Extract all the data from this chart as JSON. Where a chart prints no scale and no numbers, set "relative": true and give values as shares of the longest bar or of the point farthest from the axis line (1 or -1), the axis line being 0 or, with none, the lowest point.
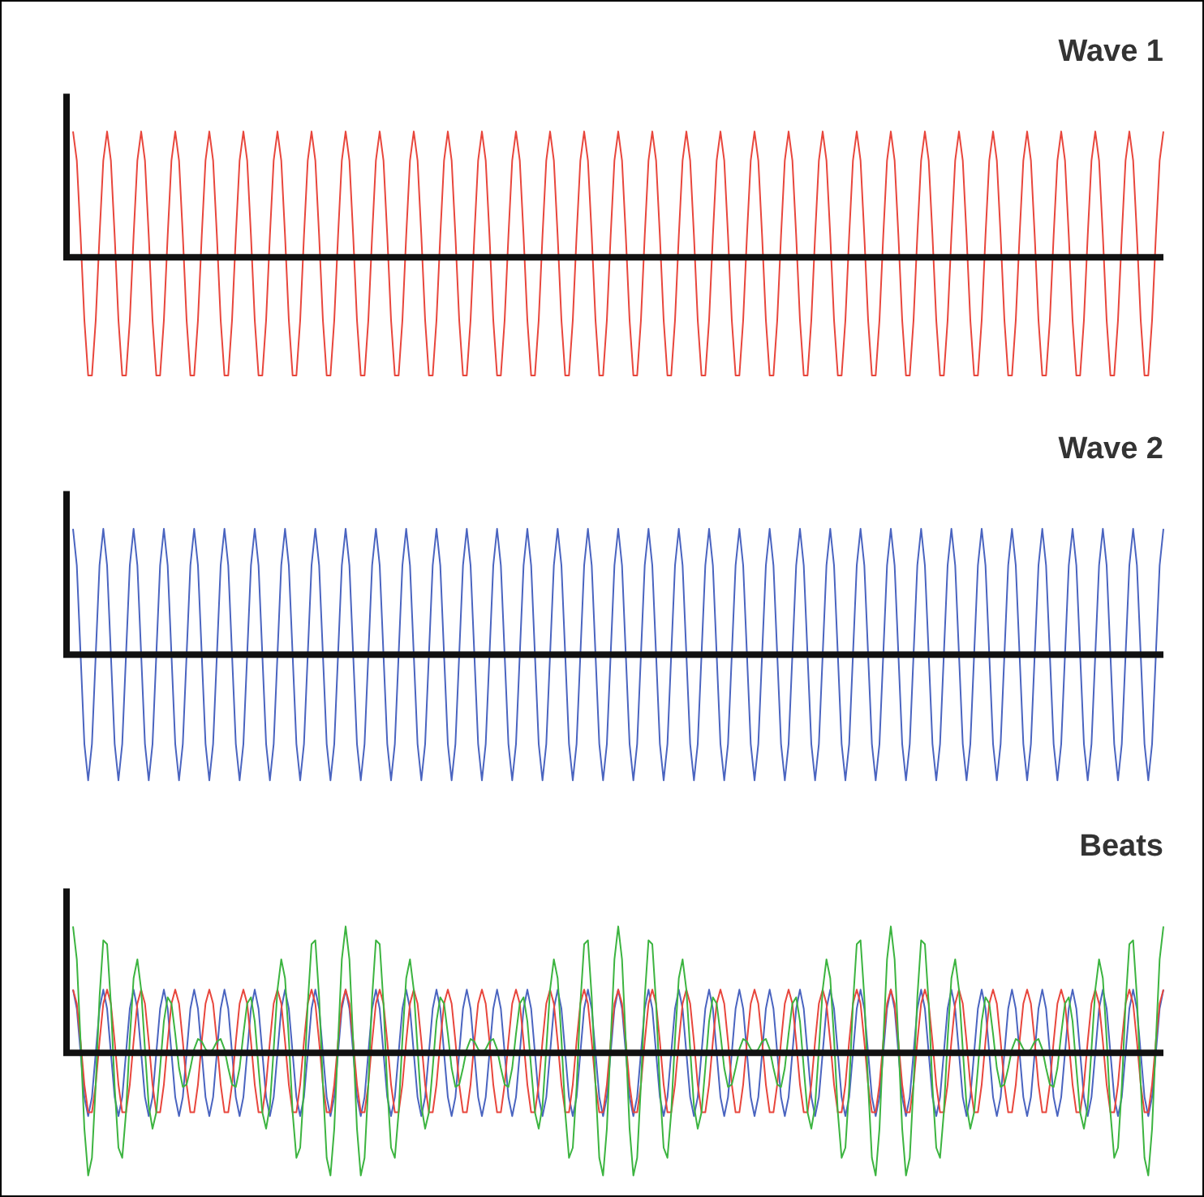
{
  "chart_data": [
    {
      "type": "line",
      "title": "Wave 1",
      "relative": true,
      "marker": "none",
      "categories": [
        null,
        null,
        null,
        null,
        null,
        null,
        null,
        null,
        null,
        null,
        null,
        null,
        null,
        null,
        null,
        null,
        null,
        null,
        null,
        null,
        null,
        null,
        null,
        null,
        null,
        null,
        null,
        null,
        null,
        null,
        null,
        null,
        null,
        null,
        null,
        null,
        null,
        null,
        null,
        null,
        null,
        null,
        null,
        null,
        null,
        null,
        null,
        null,
        null,
        null,
        null,
        null,
        null,
        null,
        null,
        null,
        null,
        null,
        null,
        null,
        null,
        null,
        null,
        null,
        null,
        null,
        null,
        null,
        null,
        null,
        null,
        null,
        null,
        null,
        null,
        null,
        null,
        null,
        null,
        null,
        null,
        null,
        null,
        null,
        null,
        null,
        null,
        null,
        null,
        null,
        null,
        null,
        null,
        null,
        null,
        null,
        null,
        null,
        null,
        null,
        null,
        null,
        null,
        null,
        null,
        null,
        null,
        null,
        null,
        null,
        null,
        null,
        null,
        null,
        null,
        null,
        null,
        null,
        null,
        null,
        null,
        null,
        null,
        null,
        null,
        null,
        null,
        null,
        null,
        null,
        null,
        null,
        null,
        null,
        null,
        null,
        null,
        null,
        null,
        null,
        null,
        null,
        null,
        null,
        null,
        null,
        null,
        null,
        null,
        null,
        null,
        null,
        null,
        null,
        null,
        null,
        null,
        null,
        null,
        null,
        null,
        null,
        null,
        null,
        null,
        null,
        null,
        null,
        null,
        null,
        null,
        null,
        null,
        null,
        null,
        null,
        null,
        null,
        null,
        null,
        null,
        null,
        null,
        null,
        null,
        null,
        null,
        null,
        null,
        null,
        null,
        null,
        null,
        null,
        null,
        null,
        null,
        null,
        null,
        null,
        null,
        null,
        null,
        null,
        null,
        null,
        null,
        null,
        null,
        null,
        null,
        null,
        null,
        null,
        null,
        null,
        null,
        null,
        null,
        null,
        null,
        null,
        null,
        null,
        null,
        null,
        null,
        null,
        null,
        null,
        null,
        null,
        null,
        null,
        null,
        null,
        null,
        null,
        null,
        null,
        null,
        null,
        null,
        null,
        null,
        null,
        null,
        null,
        null,
        null,
        null,
        null,
        null,
        null,
        null,
        null,
        null,
        null,
        null,
        null,
        null,
        null,
        null,
        null,
        null,
        null,
        null,
        null,
        null,
        null,
        null,
        null,
        null,
        null,
        null,
        null,
        null,
        null,
        null,
        null,
        null,
        null,
        null,
        null,
        null,
        null,
        null,
        null,
        null
      ],
      "series": [
        {
          "color": "#e8463c",
          "values": [
            1,
            0.77,
            0.17,
            -0.5,
            -0.94,
            -0.94,
            -0.5,
            0.17,
            0.77,
            1,
            0.77,
            0.17,
            -0.5,
            -0.94,
            -0.94,
            -0.5,
            0.17,
            0.77,
            1,
            0.77,
            0.17,
            -0.5,
            -0.94,
            -0.94,
            -0.5,
            0.17,
            0.77,
            1,
            0.77,
            0.17,
            -0.5,
            -0.94,
            -0.94,
            -0.5,
            0.17,
            0.77,
            1,
            0.77,
            0.17,
            -0.5,
            -0.94,
            -0.94,
            -0.5,
            0.17,
            0.77,
            1,
            0.77,
            0.17,
            -0.5,
            -0.94,
            -0.94,
            -0.5,
            0.17,
            0.77,
            1,
            0.77,
            0.17,
            -0.5,
            -0.94,
            -0.94,
            -0.5,
            0.17,
            0.77,
            1,
            0.77,
            0.17,
            -0.5,
            -0.94,
            -0.94,
            -0.5,
            0.17,
            0.77,
            1,
            0.77,
            0.17,
            -0.5,
            -0.94,
            -0.94,
            -0.5,
            0.17,
            0.77,
            1,
            0.77,
            0.17,
            -0.5,
            -0.94,
            -0.94,
            -0.5,
            0.17,
            0.77,
            1,
            0.77,
            0.17,
            -0.5,
            -0.94,
            -0.94,
            -0.5,
            0.17,
            0.77,
            1,
            0.77,
            0.17,
            -0.5,
            -0.94,
            -0.94,
            -0.5,
            0.17,
            0.77,
            1,
            0.77,
            0.17,
            -0.5,
            -0.94,
            -0.94,
            -0.5,
            0.17,
            0.77,
            1,
            0.77,
            0.17,
            -0.5,
            -0.94,
            -0.94,
            -0.5,
            0.17,
            0.77,
            1,
            0.77,
            0.17,
            -0.5,
            -0.94,
            -0.94,
            -0.5,
            0.17,
            0.77,
            1,
            0.77,
            0.17,
            -0.5,
            -0.94,
            -0.94,
            -0.5,
            0.17,
            0.77,
            1,
            0.77,
            0.17,
            -0.5,
            -0.94,
            -0.94,
            -0.5,
            0.17,
            0.77,
            1,
            0.77,
            0.17,
            -0.5,
            -0.94,
            -0.94,
            -0.5,
            0.17,
            0.77,
            1,
            0.77,
            0.17,
            -0.5,
            -0.94,
            -0.94,
            -0.5,
            0.17,
            0.77,
            1,
            0.77,
            0.17,
            -0.5,
            -0.94,
            -0.94,
            -0.5,
            0.17,
            0.77,
            1,
            0.77,
            0.17,
            -0.5,
            -0.94,
            -0.94,
            -0.5,
            0.17,
            0.77,
            1,
            0.77,
            0.17,
            -0.5,
            -0.94,
            -0.94,
            -0.5,
            0.17,
            0.77,
            1,
            0.77,
            0.17,
            -0.5,
            -0.94,
            -0.94,
            -0.5,
            0.17,
            0.77,
            1,
            0.77,
            0.17,
            -0.5,
            -0.94,
            -0.94,
            -0.5,
            0.17,
            0.77,
            1,
            0.77,
            0.17,
            -0.5,
            -0.94,
            -0.94,
            -0.5,
            0.17,
            0.77,
            1,
            0.77,
            0.17,
            -0.5,
            -0.94,
            -0.94,
            -0.5,
            0.17,
            0.77,
            1,
            0.77,
            0.17,
            -0.5,
            -0.94,
            -0.94,
            -0.5,
            0.17,
            0.77,
            1,
            0.77,
            0.17,
            -0.5,
            -0.94,
            -0.94,
            -0.5,
            0.17,
            0.77,
            1,
            0.77,
            0.17,
            -0.5,
            -0.94,
            -0.94,
            -0.5,
            0.17,
            0.77,
            1,
            0.77,
            0.17,
            -0.5,
            -0.94,
            -0.94,
            -0.5,
            0.17,
            0.77,
            1,
            0.77,
            0.17,
            -0.5,
            -0.94,
            -0.94,
            -0.5,
            0.17,
            0.77,
            1,
            0.77,
            0.17,
            -0.5,
            -0.94,
            -0.94,
            -0.5,
            0.17,
            0.77,
            1
          ]
        }
      ]
    },
    {
      "type": "line",
      "title": "Wave 2",
      "relative": true,
      "marker": "none",
      "categories": [
        null,
        null,
        null,
        null,
        null,
        null,
        null,
        null,
        null,
        null,
        null,
        null,
        null,
        null,
        null,
        null,
        null,
        null,
        null,
        null,
        null,
        null,
        null,
        null,
        null,
        null,
        null,
        null,
        null,
        null,
        null,
        null,
        null,
        null,
        null,
        null,
        null,
        null,
        null,
        null,
        null,
        null,
        null,
        null,
        null,
        null,
        null,
        null,
        null,
        null,
        null,
        null,
        null,
        null,
        null,
        null,
        null,
        null,
        null,
        null,
        null,
        null,
        null,
        null,
        null,
        null,
        null,
        null,
        null,
        null,
        null,
        null,
        null,
        null,
        null,
        null,
        null,
        null,
        null,
        null,
        null,
        null,
        null,
        null,
        null,
        null,
        null,
        null,
        null,
        null,
        null,
        null,
        null,
        null,
        null,
        null,
        null,
        null,
        null,
        null,
        null,
        null,
        null,
        null,
        null,
        null,
        null,
        null,
        null,
        null,
        null,
        null,
        null,
        null,
        null,
        null,
        null,
        null,
        null,
        null,
        null,
        null,
        null,
        null,
        null,
        null,
        null,
        null,
        null,
        null,
        null,
        null,
        null,
        null,
        null,
        null,
        null,
        null,
        null,
        null,
        null,
        null,
        null,
        null,
        null,
        null,
        null,
        null,
        null,
        null,
        null,
        null,
        null,
        null,
        null,
        null,
        null,
        null,
        null,
        null,
        null,
        null,
        null,
        null,
        null,
        null,
        null,
        null,
        null,
        null,
        null,
        null,
        null,
        null,
        null,
        null,
        null,
        null,
        null,
        null,
        null,
        null,
        null,
        null,
        null,
        null,
        null,
        null,
        null,
        null,
        null,
        null,
        null,
        null,
        null,
        null,
        null,
        null,
        null,
        null,
        null,
        null,
        null,
        null,
        null,
        null,
        null,
        null,
        null,
        null,
        null,
        null,
        null,
        null,
        null,
        null,
        null,
        null,
        null,
        null,
        null,
        null,
        null,
        null,
        null,
        null,
        null,
        null,
        null,
        null,
        null,
        null,
        null,
        null,
        null,
        null,
        null,
        null,
        null,
        null,
        null,
        null,
        null,
        null,
        null,
        null,
        null,
        null,
        null,
        null,
        null,
        null,
        null,
        null,
        null,
        null,
        null,
        null,
        null,
        null,
        null,
        null,
        null,
        null,
        null,
        null,
        null,
        null,
        null,
        null,
        null,
        null,
        null,
        null,
        null,
        null,
        null,
        null,
        null,
        null,
        null,
        null,
        null,
        null,
        null,
        null,
        null,
        null,
        null
      ],
      "series": [
        {
          "color": "#4a64c0",
          "values": [
            1,
            0.71,
            0,
            -0.71,
            -1,
            -0.71,
            0,
            0.71,
            1,
            0.71,
            0,
            -0.71,
            -1,
            -0.71,
            0,
            0.71,
            1,
            0.71,
            0,
            -0.71,
            -1,
            -0.71,
            0,
            0.71,
            1,
            0.71,
            0,
            -0.71,
            -1,
            -0.71,
            0,
            0.71,
            1,
            0.71,
            0,
            -0.71,
            -1,
            -0.71,
            0,
            0.71,
            1,
            0.71,
            0,
            -0.71,
            -1,
            -0.71,
            0,
            0.71,
            1,
            0.71,
            0,
            -0.71,
            -1,
            -0.71,
            0,
            0.71,
            1,
            0.71,
            0,
            -0.71,
            -1,
            -0.71,
            0,
            0.71,
            1,
            0.71,
            0,
            -0.71,
            -1,
            -0.71,
            0,
            0.71,
            1,
            0.71,
            0,
            -0.71,
            -1,
            -0.71,
            0,
            0.71,
            1,
            0.71,
            0,
            -0.71,
            -1,
            -0.71,
            0,
            0.71,
            1,
            0.71,
            0,
            -0.71,
            -1,
            -0.71,
            0,
            0.71,
            1,
            0.71,
            0,
            -0.71,
            -1,
            -0.71,
            0,
            0.71,
            1,
            0.71,
            0,
            -0.71,
            -1,
            -0.71,
            0,
            0.71,
            1,
            0.71,
            0,
            -0.71,
            -1,
            -0.71,
            0,
            0.71,
            1,
            0.71,
            0,
            -0.71,
            -1,
            -0.71,
            0,
            0.71,
            1,
            0.71,
            0,
            -0.71,
            -1,
            -0.71,
            0,
            0.71,
            1,
            0.71,
            0,
            -0.71,
            -1,
            -0.71,
            0,
            0.71,
            1,
            0.71,
            0,
            -0.71,
            -1,
            -0.71,
            0,
            0.71,
            1,
            0.71,
            0,
            -0.71,
            -1,
            -0.71,
            0,
            0.71,
            1,
            0.71,
            0,
            -0.71,
            -1,
            -0.71,
            0,
            0.71,
            1,
            0.71,
            0,
            -0.71,
            -1,
            -0.71,
            0,
            0.71,
            1,
            0.71,
            0,
            -0.71,
            -1,
            -0.71,
            0,
            0.71,
            1,
            0.71,
            0,
            -0.71,
            -1,
            -0.71,
            0,
            0.71,
            1,
            0.71,
            0,
            -0.71,
            -1,
            -0.71,
            0,
            0.71,
            1,
            0.71,
            0,
            -0.71,
            -1,
            -0.71,
            0,
            0.71,
            1,
            0.71,
            0,
            -0.71,
            -1,
            -0.71,
            0,
            0.71,
            1,
            0.71,
            0,
            -0.71,
            -1,
            -0.71,
            0,
            0.71,
            1,
            0.71,
            0,
            -0.71,
            -1,
            -0.71,
            0,
            0.71,
            1,
            0.71,
            0,
            -0.71,
            -1,
            -0.71,
            0,
            0.71,
            1,
            0.71,
            0,
            -0.71,
            -1,
            -0.71,
            0,
            0.71,
            1,
            0.71,
            0,
            -0.71,
            -1,
            -0.71,
            0,
            0.71,
            1,
            0.71,
            0,
            -0.71,
            -1,
            -0.71,
            0,
            0.71,
            1,
            0.71,
            0,
            -0.71,
            -1,
            -0.71,
            0,
            0.71,
            1,
            0.71,
            0,
            -0.71,
            -1,
            -0.71,
            0,
            0.71,
            1,
            0.71,
            0,
            -0.71,
            -1,
            -0.71,
            0,
            0.71,
            1
          ]
        }
      ]
    },
    {
      "type": "line",
      "title": "Beats",
      "relative": true,
      "marker": "none",
      "categories": [
        null,
        null,
        null,
        null,
        null,
        null,
        null,
        null,
        null,
        null,
        null,
        null,
        null,
        null,
        null,
        null,
        null,
        null,
        null,
        null,
        null,
        null,
        null,
        null,
        null,
        null,
        null,
        null,
        null,
        null,
        null,
        null,
        null,
        null,
        null,
        null,
        null,
        null,
        null,
        null,
        null,
        null,
        null,
        null,
        null,
        null,
        null,
        null,
        null,
        null,
        null,
        null,
        null,
        null,
        null,
        null,
        null,
        null,
        null,
        null,
        null,
        null,
        null,
        null,
        null,
        null,
        null,
        null,
        null,
        null,
        null,
        null,
        null,
        null,
        null,
        null,
        null,
        null,
        null,
        null,
        null,
        null,
        null,
        null,
        null,
        null,
        null,
        null,
        null,
        null,
        null,
        null,
        null,
        null,
        null,
        null,
        null,
        null,
        null,
        null,
        null,
        null,
        null,
        null,
        null,
        null,
        null,
        null,
        null,
        null,
        null,
        null,
        null,
        null,
        null,
        null,
        null,
        null,
        null,
        null,
        null,
        null,
        null,
        null,
        null,
        null,
        null,
        null,
        null,
        null,
        null,
        null,
        null,
        null,
        null,
        null,
        null,
        null,
        null,
        null,
        null,
        null,
        null,
        null,
        null,
        null,
        null,
        null,
        null,
        null,
        null,
        null,
        null,
        null,
        null,
        null,
        null,
        null,
        null,
        null,
        null,
        null,
        null,
        null,
        null,
        null,
        null,
        null,
        null,
        null,
        null,
        null,
        null,
        null,
        null,
        null,
        null,
        null,
        null,
        null,
        null,
        null,
        null,
        null,
        null,
        null,
        null,
        null,
        null,
        null,
        null,
        null,
        null,
        null,
        null,
        null,
        null,
        null,
        null,
        null,
        null,
        null,
        null,
        null,
        null,
        null,
        null,
        null,
        null,
        null,
        null,
        null,
        null,
        null,
        null,
        null,
        null,
        null,
        null,
        null,
        null,
        null,
        null,
        null,
        null,
        null,
        null,
        null,
        null,
        null,
        null,
        null,
        null,
        null,
        null,
        null,
        null,
        null,
        null,
        null,
        null,
        null,
        null,
        null,
        null,
        null,
        null,
        null,
        null,
        null,
        null,
        null,
        null,
        null,
        null,
        null,
        null,
        null,
        null,
        null,
        null,
        null,
        null,
        null,
        null,
        null,
        null,
        null,
        null,
        null,
        null,
        null,
        null,
        null,
        null,
        null,
        null,
        null,
        null,
        null,
        null,
        null,
        null,
        null,
        null,
        null,
        null,
        null,
        null
      ],
      "series": [
        {
          "color": "#3cb440",
          "values": [
            1,
            0.74,
            0.09,
            -0.6,
            -0.97,
            -0.83,
            -0.25,
            0.44,
            0.89,
            0.86,
            0.39,
            -0.27,
            -0.75,
            -0.83,
            -0.47,
            0.11,
            0.59,
            0.74,
            0.5,
            0.03,
            -0.42,
            -0.6,
            -0.47,
            -0.12,
            0.25,
            0.44,
            0.39,
            0.15,
            -0.12,
            -0.27,
            -0.25,
            -0.12,
            0.03,
            0.11,
            0.09,
            0.03,
            0,
            0.03,
            0.09,
            0.11,
            0.03,
            -0.12,
            -0.25,
            -0.27,
            -0.12,
            0.15,
            0.39,
            0.44,
            0.25,
            -0.12,
            -0.47,
            -0.6,
            -0.42,
            0.03,
            0.5,
            0.74,
            0.59,
            0.11,
            -0.47,
            -0.83,
            -0.75,
            -0.27,
            0.39,
            0.86,
            0.89,
            0.44,
            -0.25,
            -0.83,
            -0.97,
            -0.6,
            0.09,
            0.74,
            1,
            0.74,
            0.09,
            -0.6,
            -0.97,
            -0.83,
            -0.25,
            0.44,
            0.89,
            0.86,
            0.39,
            -0.27,
            -0.75,
            -0.83,
            -0.47,
            0.11,
            0.59,
            0.74,
            0.5,
            0.03,
            -0.42,
            -0.6,
            -0.47,
            -0.12,
            0.25,
            0.44,
            0.39,
            0.15,
            -0.12,
            -0.27,
            -0.25,
            -0.12,
            0.03,
            0.11,
            0.09,
            0.03,
            0,
            0.03,
            0.09,
            0.11,
            0.03,
            -0.12,
            -0.25,
            -0.27,
            -0.12,
            0.15,
            0.39,
            0.44,
            0.25,
            -0.12,
            -0.47,
            -0.6,
            -0.42,
            0.03,
            0.5,
            0.74,
            0.59,
            0.11,
            -0.47,
            -0.83,
            -0.75,
            -0.27,
            0.39,
            0.86,
            0.89,
            0.44,
            -0.25,
            -0.83,
            -0.97,
            -0.6,
            0.09,
            0.74,
            1,
            0.74,
            0.09,
            -0.6,
            -0.97,
            -0.83,
            -0.25,
            0.44,
            0.89,
            0.86,
            0.39,
            -0.27,
            -0.75,
            -0.83,
            -0.47,
            0.11,
            0.59,
            0.74,
            0.5,
            0.03,
            -0.42,
            -0.6,
            -0.47,
            -0.12,
            0.25,
            0.44,
            0.39,
            0.15,
            -0.12,
            -0.27,
            -0.25,
            -0.12,
            0.03,
            0.11,
            0.09,
            0.03,
            0,
            0.03,
            0.09,
            0.11,
            0.03,
            -0.12,
            -0.25,
            -0.27,
            -0.12,
            0.15,
            0.39,
            0.44,
            0.25,
            -0.12,
            -0.47,
            -0.6,
            -0.42,
            0.03,
            0.5,
            0.74,
            0.59,
            0.11,
            -0.47,
            -0.83,
            -0.75,
            -0.27,
            0.39,
            0.86,
            0.89,
            0.44,
            -0.25,
            -0.83,
            -0.97,
            -0.6,
            0.09,
            0.74,
            1,
            0.74,
            0.09,
            -0.6,
            -0.97,
            -0.83,
            -0.25,
            0.44,
            0.89,
            0.86,
            0.39,
            -0.27,
            -0.75,
            -0.83,
            -0.47,
            0.11,
            0.59,
            0.74,
            0.5,
            0.03,
            -0.42,
            -0.6,
            -0.47,
            -0.12,
            0.25,
            0.44,
            0.39,
            0.15,
            -0.12,
            -0.27,
            -0.25,
            -0.12,
            0.03,
            0.11,
            0.09,
            0.03,
            0,
            0.03,
            0.09,
            0.11,
            0.03,
            -0.12,
            -0.25,
            -0.27,
            -0.12,
            0.15,
            0.39,
            0.44,
            0.25,
            -0.12,
            -0.47,
            -0.6,
            -0.42,
            0.03,
            0.5,
            0.74,
            0.59,
            0.11,
            -0.47,
            -0.83,
            -0.75,
            -0.27,
            0.39,
            0.86,
            0.89,
            0.44,
            -0.25,
            -0.83,
            -0.97,
            -0.6,
            0.09,
            0.74,
            1
          ]
        },
        {
          "color": "#e8463c",
          "values": [
            0.5,
            0.39,
            0.09,
            -0.25,
            -0.47,
            -0.47,
            -0.25,
            0.09,
            0.39,
            0.5,
            0.39,
            0.09,
            -0.25,
            -0.47,
            -0.47,
            -0.25,
            0.09,
            0.39,
            0.5,
            0.39,
            0.09,
            -0.25,
            -0.47,
            -0.47,
            -0.25,
            0.09,
            0.39,
            0.5,
            0.39,
            0.09,
            -0.25,
            -0.47,
            -0.47,
            -0.25,
            0.09,
            0.39,
            0.5,
            0.39,
            0.09,
            -0.25,
            -0.47,
            -0.47,
            -0.25,
            0.09,
            0.39,
            0.5,
            0.39,
            0.09,
            -0.25,
            -0.47,
            -0.47,
            -0.25,
            0.09,
            0.39,
            0.5,
            0.39,
            0.09,
            -0.25,
            -0.47,
            -0.47,
            -0.25,
            0.09,
            0.39,
            0.5,
            0.39,
            0.09,
            -0.25,
            -0.47,
            -0.47,
            -0.25,
            0.09,
            0.39,
            0.5,
            0.39,
            0.09,
            -0.25,
            -0.47,
            -0.47,
            -0.25,
            0.09,
            0.39,
            0.5,
            0.39,
            0.09,
            -0.25,
            -0.47,
            -0.47,
            -0.25,
            0.09,
            0.39,
            0.5,
            0.39,
            0.09,
            -0.25,
            -0.47,
            -0.47,
            -0.25,
            0.09,
            0.39,
            0.5,
            0.39,
            0.09,
            -0.25,
            -0.47,
            -0.47,
            -0.25,
            0.09,
            0.39,
            0.5,
            0.39,
            0.09,
            -0.25,
            -0.47,
            -0.47,
            -0.25,
            0.09,
            0.39,
            0.5,
            0.39,
            0.09,
            -0.25,
            -0.47,
            -0.47,
            -0.25,
            0.09,
            0.39,
            0.5,
            0.39,
            0.09,
            -0.25,
            -0.47,
            -0.47,
            -0.25,
            0.09,
            0.39,
            0.5,
            0.39,
            0.09,
            -0.25,
            -0.47,
            -0.47,
            -0.25,
            0.09,
            0.39,
            0.5,
            0.39,
            0.09,
            -0.25,
            -0.47,
            -0.47,
            -0.25,
            0.09,
            0.39,
            0.5,
            0.39,
            0.09,
            -0.25,
            -0.47,
            -0.47,
            -0.25,
            0.09,
            0.39,
            0.5,
            0.39,
            0.09,
            -0.25,
            -0.47,
            -0.47,
            -0.25,
            0.09,
            0.39,
            0.5,
            0.39,
            0.09,
            -0.25,
            -0.47,
            -0.47,
            -0.25,
            0.09,
            0.39,
            0.5,
            0.39,
            0.09,
            -0.25,
            -0.47,
            -0.47,
            -0.25,
            0.09,
            0.39,
            0.5,
            0.39,
            0.09,
            -0.25,
            -0.47,
            -0.47,
            -0.25,
            0.09,
            0.39,
            0.5,
            0.39,
            0.09,
            -0.25,
            -0.47,
            -0.47,
            -0.25,
            0.09,
            0.39,
            0.5,
            0.39,
            0.09,
            -0.25,
            -0.47,
            -0.47,
            -0.25,
            0.09,
            0.39,
            0.5,
            0.39,
            0.09,
            -0.25,
            -0.47,
            -0.47,
            -0.25,
            0.09,
            0.39,
            0.5,
            0.39,
            0.09,
            -0.25,
            -0.47,
            -0.47,
            -0.25,
            0.09,
            0.39,
            0.5,
            0.39,
            0.09,
            -0.25,
            -0.47,
            -0.47,
            -0.25,
            0.09,
            0.39,
            0.5,
            0.39,
            0.09,
            -0.25,
            -0.47,
            -0.47,
            -0.25,
            0.09,
            0.39,
            0.5,
            0.39,
            0.09,
            -0.25,
            -0.47,
            -0.47,
            -0.25,
            0.09,
            0.39,
            0.5,
            0.39,
            0.09,
            -0.25,
            -0.47,
            -0.47,
            -0.25,
            0.09,
            0.39,
            0.5,
            0.39,
            0.09,
            -0.25,
            -0.47,
            -0.47,
            -0.25,
            0.09,
            0.39,
            0.5,
            0.39,
            0.09,
            -0.25,
            -0.47,
            -0.47,
            -0.25,
            0.09,
            0.39,
            0.5
          ]
        },
        {
          "color": "#4a64c0",
          "values": [
            0.5,
            0.35,
            0,
            -0.35,
            -0.5,
            -0.35,
            0,
            0.35,
            0.5,
            0.35,
            0,
            -0.35,
            -0.5,
            -0.35,
            0,
            0.35,
            0.5,
            0.35,
            0,
            -0.35,
            -0.5,
            -0.35,
            0,
            0.35,
            0.5,
            0.35,
            0,
            -0.35,
            -0.5,
            -0.35,
            0,
            0.35,
            0.5,
            0.35,
            0,
            -0.35,
            -0.5,
            -0.35,
            0,
            0.35,
            0.5,
            0.35,
            0,
            -0.35,
            -0.5,
            -0.35,
            0,
            0.35,
            0.5,
            0.35,
            0,
            -0.35,
            -0.5,
            -0.35,
            0,
            0.35,
            0.5,
            0.35,
            0,
            -0.35,
            -0.5,
            -0.35,
            0,
            0.35,
            0.5,
            0.35,
            0,
            -0.35,
            -0.5,
            -0.35,
            0,
            0.35,
            0.5,
            0.35,
            0,
            -0.35,
            -0.5,
            -0.35,
            0,
            0.35,
            0.5,
            0.35,
            0,
            -0.35,
            -0.5,
            -0.35,
            0,
            0.35,
            0.5,
            0.35,
            0,
            -0.35,
            -0.5,
            -0.35,
            0,
            0.35,
            0.5,
            0.35,
            0,
            -0.35,
            -0.5,
            -0.35,
            0,
            0.35,
            0.5,
            0.35,
            0,
            -0.35,
            -0.5,
            -0.35,
            0,
            0.35,
            0.5,
            0.35,
            0,
            -0.35,
            -0.5,
            -0.35,
            0,
            0.35,
            0.5,
            0.35,
            0,
            -0.35,
            -0.5,
            -0.35,
            0,
            0.35,
            0.5,
            0.35,
            0,
            -0.35,
            -0.5,
            -0.35,
            0,
            0.35,
            0.5,
            0.35,
            0,
            -0.35,
            -0.5,
            -0.35,
            0,
            0.35,
            0.5,
            0.35,
            0,
            -0.35,
            -0.5,
            -0.35,
            0,
            0.35,
            0.5,
            0.35,
            0,
            -0.35,
            -0.5,
            -0.35,
            0,
            0.35,
            0.5,
            0.35,
            0,
            -0.35,
            -0.5,
            -0.35,
            0,
            0.35,
            0.5,
            0.35,
            0,
            -0.35,
            -0.5,
            -0.35,
            0,
            0.35,
            0.5,
            0.35,
            0,
            -0.35,
            -0.5,
            -0.35,
            0,
            0.35,
            0.5,
            0.35,
            0,
            -0.35,
            -0.5,
            -0.35,
            0,
            0.35,
            0.5,
            0.35,
            0,
            -0.35,
            -0.5,
            -0.35,
            0,
            0.35,
            0.5,
            0.35,
            0,
            -0.35,
            -0.5,
            -0.35,
            0,
            0.35,
            0.5,
            0.35,
            0,
            -0.35,
            -0.5,
            -0.35,
            0,
            0.35,
            0.5,
            0.35,
            0,
            -0.35,
            -0.5,
            -0.35,
            0,
            0.35,
            0.5,
            0.35,
            0,
            -0.35,
            -0.5,
            -0.35,
            0,
            0.35,
            0.5,
            0.35,
            0,
            -0.35,
            -0.5,
            -0.35,
            0,
            0.35,
            0.5,
            0.35,
            0,
            -0.35,
            -0.5,
            -0.35,
            0,
            0.35,
            0.5,
            0.35,
            0,
            -0.35,
            -0.5,
            -0.35,
            0,
            0.35,
            0.5,
            0.35,
            0,
            -0.35,
            -0.5,
            -0.35,
            0,
            0.35,
            0.5,
            0.35,
            0,
            -0.35,
            -0.5,
            -0.35,
            0,
            0.35,
            0.5,
            0.35,
            0,
            -0.35,
            -0.5,
            -0.35,
            0,
            0.35,
            0.5,
            0.35,
            0,
            -0.35,
            -0.5,
            -0.35,
            0,
            0.35,
            0.5
          ]
        }
      ]
    }
  ]
}
